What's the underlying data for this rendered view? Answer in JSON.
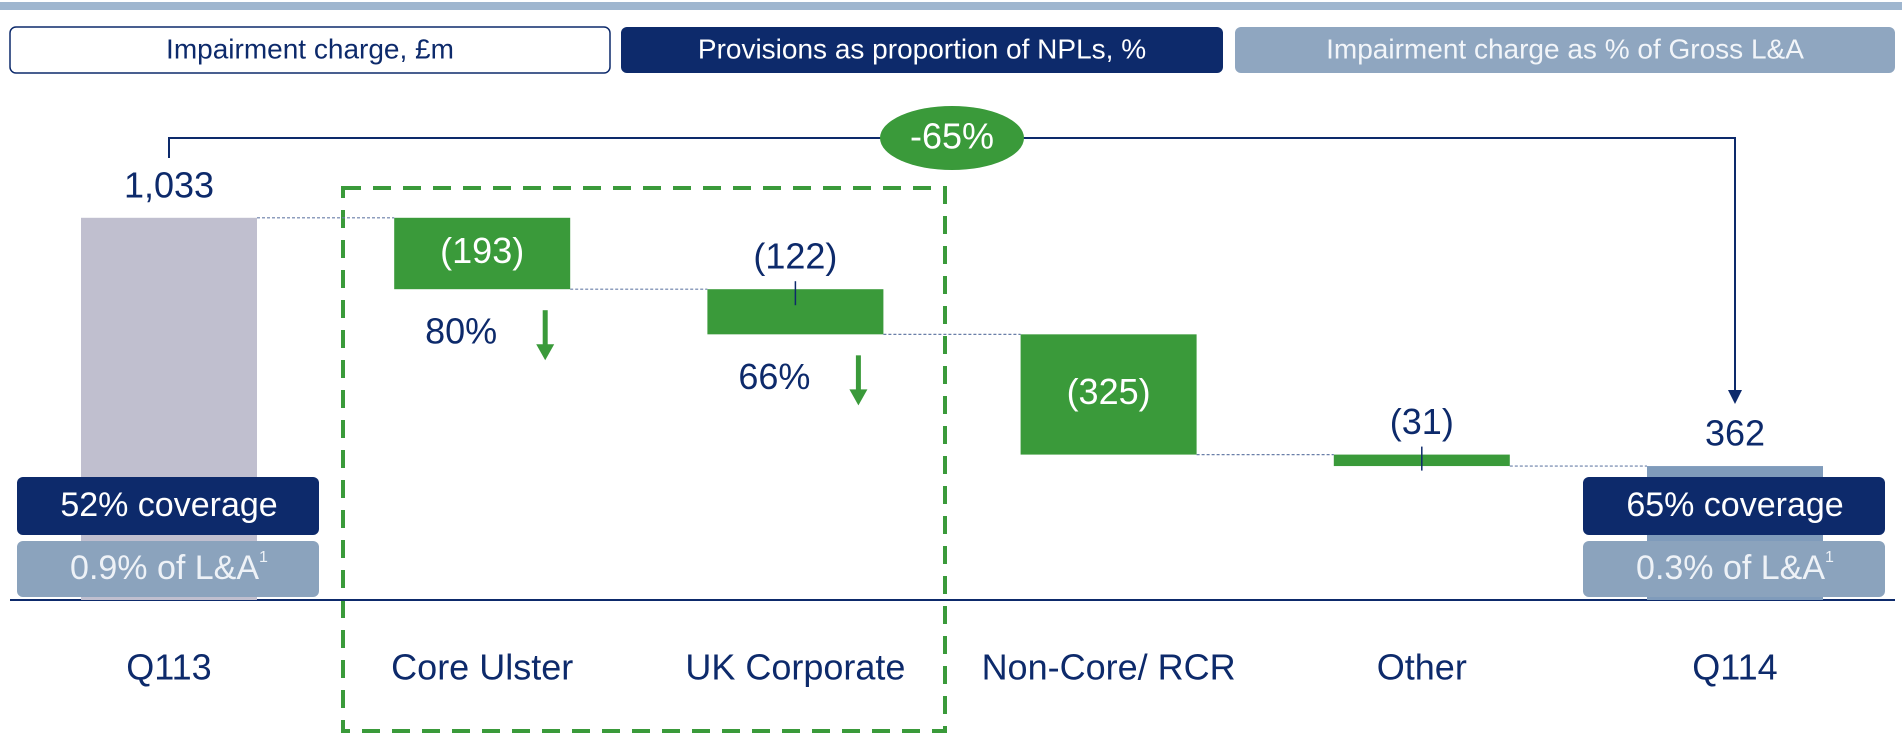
{
  "chart_data": {
    "type": "waterfall",
    "legend": [
      "Impairment charge, £m",
      "Provisions as proportion of NPLs, %",
      "Impairment charge as % of Gross L&A"
    ],
    "categories": [
      "Q113",
      "Core Ulster",
      "UK Corporate",
      "Non-Core/ RCR",
      "Other",
      "Q114"
    ],
    "values": [
      1033,
      -193,
      -122,
      -325,
      -31,
      362
    ],
    "value_labels": [
      "1,033",
      "(193)",
      "(122)",
      "(325)",
      "(31)",
      "362"
    ],
    "totals": [
      true,
      false,
      false,
      false,
      false,
      true
    ],
    "colors": [
      "#c0bfcf",
      "#3a9a3a",
      "#3a9a3a",
      "#3a9a3a",
      "#3a9a3a",
      "#7f9bbb"
    ],
    "change_label": "-65%",
    "segment_notes": {
      "1": "80%",
      "2": "66%"
    },
    "start_notes": [
      "52% coverage",
      "0.9% of L&A"
    ],
    "end_notes": [
      "65% coverage",
      "0.3% of L&A"
    ],
    "footnote_mark": "1"
  }
}
